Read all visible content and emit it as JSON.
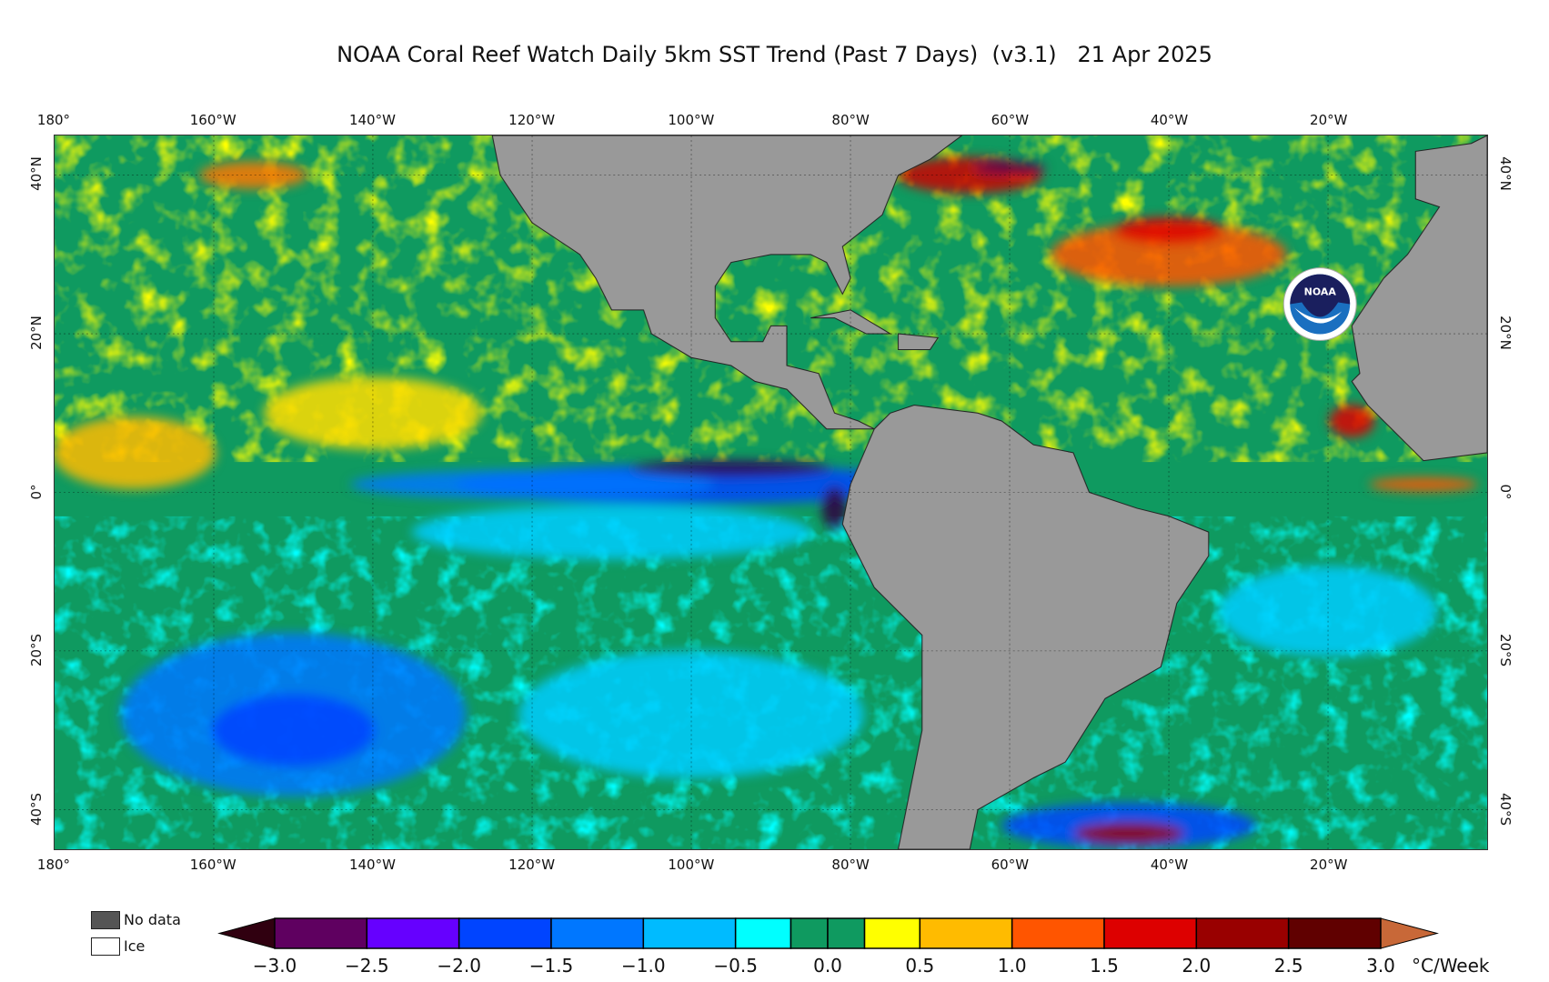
{
  "title": "NOAA Coral Reef Watch Daily 5km SST Trend (Past 7 Days)  (v3.1)   21 Apr 2025",
  "lon_labels": [
    "180°",
    "160°W",
    "140°W",
    "120°W",
    "100°W",
    "80°W",
    "60°W",
    "40°W",
    "20°W"
  ],
  "lon_values": [
    -180,
    -160,
    -140,
    -120,
    -100,
    -80,
    -60,
    -40,
    -20
  ],
  "lat_labels": [
    "40°N",
    "20°N",
    "0°",
    "20°S",
    "40°S"
  ],
  "lat_values": [
    40,
    20,
    0,
    -20,
    -40
  ],
  "map_extent": {
    "lon": [
      -180,
      0
    ],
    "lat": [
      -45,
      45
    ]
  },
  "logo_text": "NOAA",
  "legend": {
    "no_data": "No data",
    "ice": "Ice",
    "no_data_color": "#555555",
    "ice_color": "#ffffff"
  },
  "colorbar": {
    "unit": "°C/Week",
    "ticks": [
      "−3.0",
      "−2.5",
      "−2.0",
      "−1.5",
      "−1.0",
      "−0.5",
      "0.0",
      "0.5",
      "1.0",
      "1.5",
      "2.0",
      "2.5",
      "3.0"
    ],
    "tick_values": [
      -3,
      -2.5,
      -2,
      -1.5,
      -1,
      -0.5,
      0,
      0.5,
      1,
      1.5,
      2,
      2.5,
      3
    ],
    "bins": [
      {
        "from": -3.0,
        "to": -2.5,
        "color": "#5f0060"
      },
      {
        "from": -2.5,
        "to": -2.0,
        "color": "#6600ff"
      },
      {
        "from": -2.0,
        "to": -1.5,
        "color": "#0044ff"
      },
      {
        "from": -1.5,
        "to": -1.0,
        "color": "#0077ff"
      },
      {
        "from": -1.0,
        "to": -0.5,
        "color": "#00bbff"
      },
      {
        "from": -0.5,
        "to": -0.2,
        "color": "#00ffff"
      },
      {
        "from": -0.2,
        "to": 0.0,
        "color": "#0f9a60"
      },
      {
        "from": 0.0,
        "to": 0.2,
        "color": "#0f9a60"
      },
      {
        "from": 0.2,
        "to": 0.5,
        "color": "#ffff00"
      },
      {
        "from": 0.5,
        "to": 1.0,
        "color": "#ffbb00"
      },
      {
        "from": 1.0,
        "to": 1.5,
        "color": "#ff5500"
      },
      {
        "from": 1.5,
        "to": 2.0,
        "color": "#dd0000"
      },
      {
        "from": 2.0,
        "to": 2.5,
        "color": "#990000"
      },
      {
        "from": 2.5,
        "to": 3.0,
        "color": "#600000"
      }
    ],
    "under_color": "#300010",
    "over_color": "#c86838"
  },
  "colors": {
    "ocean_base": "#0f9a60",
    "land": "#999999"
  }
}
